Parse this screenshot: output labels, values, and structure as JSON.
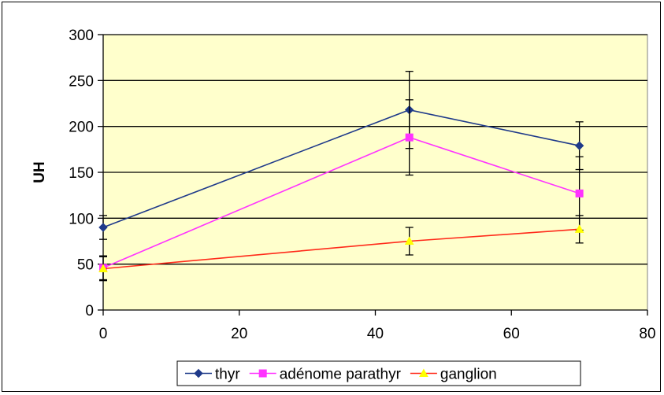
{
  "chart_data": {
    "type": "line",
    "title": "",
    "xlabel": "",
    "ylabel": "UH",
    "xlim": [
      0,
      80
    ],
    "ylim": [
      0,
      300
    ],
    "xticks": [
      0,
      20,
      40,
      60,
      80
    ],
    "yticks": [
      0,
      50,
      100,
      150,
      200,
      250,
      300
    ],
    "grid": "horizontal",
    "plot_background": "#FFFFCC",
    "legend_position": "bottom",
    "x": [
      0,
      45,
      70
    ],
    "series": [
      {
        "name": "thyr",
        "color": "#1F3A8A",
        "marker": "diamond",
        "values": [
          90,
          218,
          179
        ],
        "errors": [
          13,
          42,
          26
        ]
      },
      {
        "name": "adénome parathyr",
        "color": "#FF33FF",
        "marker": "square",
        "values": [
          46,
          188,
          127
        ],
        "errors": [
          13,
          41,
          40
        ]
      },
      {
        "name": "ganglion",
        "color": "#FF2A1A",
        "marker": "triangle",
        "marker_color": "#FFFF00",
        "values": [
          45,
          75,
          88
        ],
        "errors": [
          13,
          15,
          15
        ]
      }
    ]
  }
}
